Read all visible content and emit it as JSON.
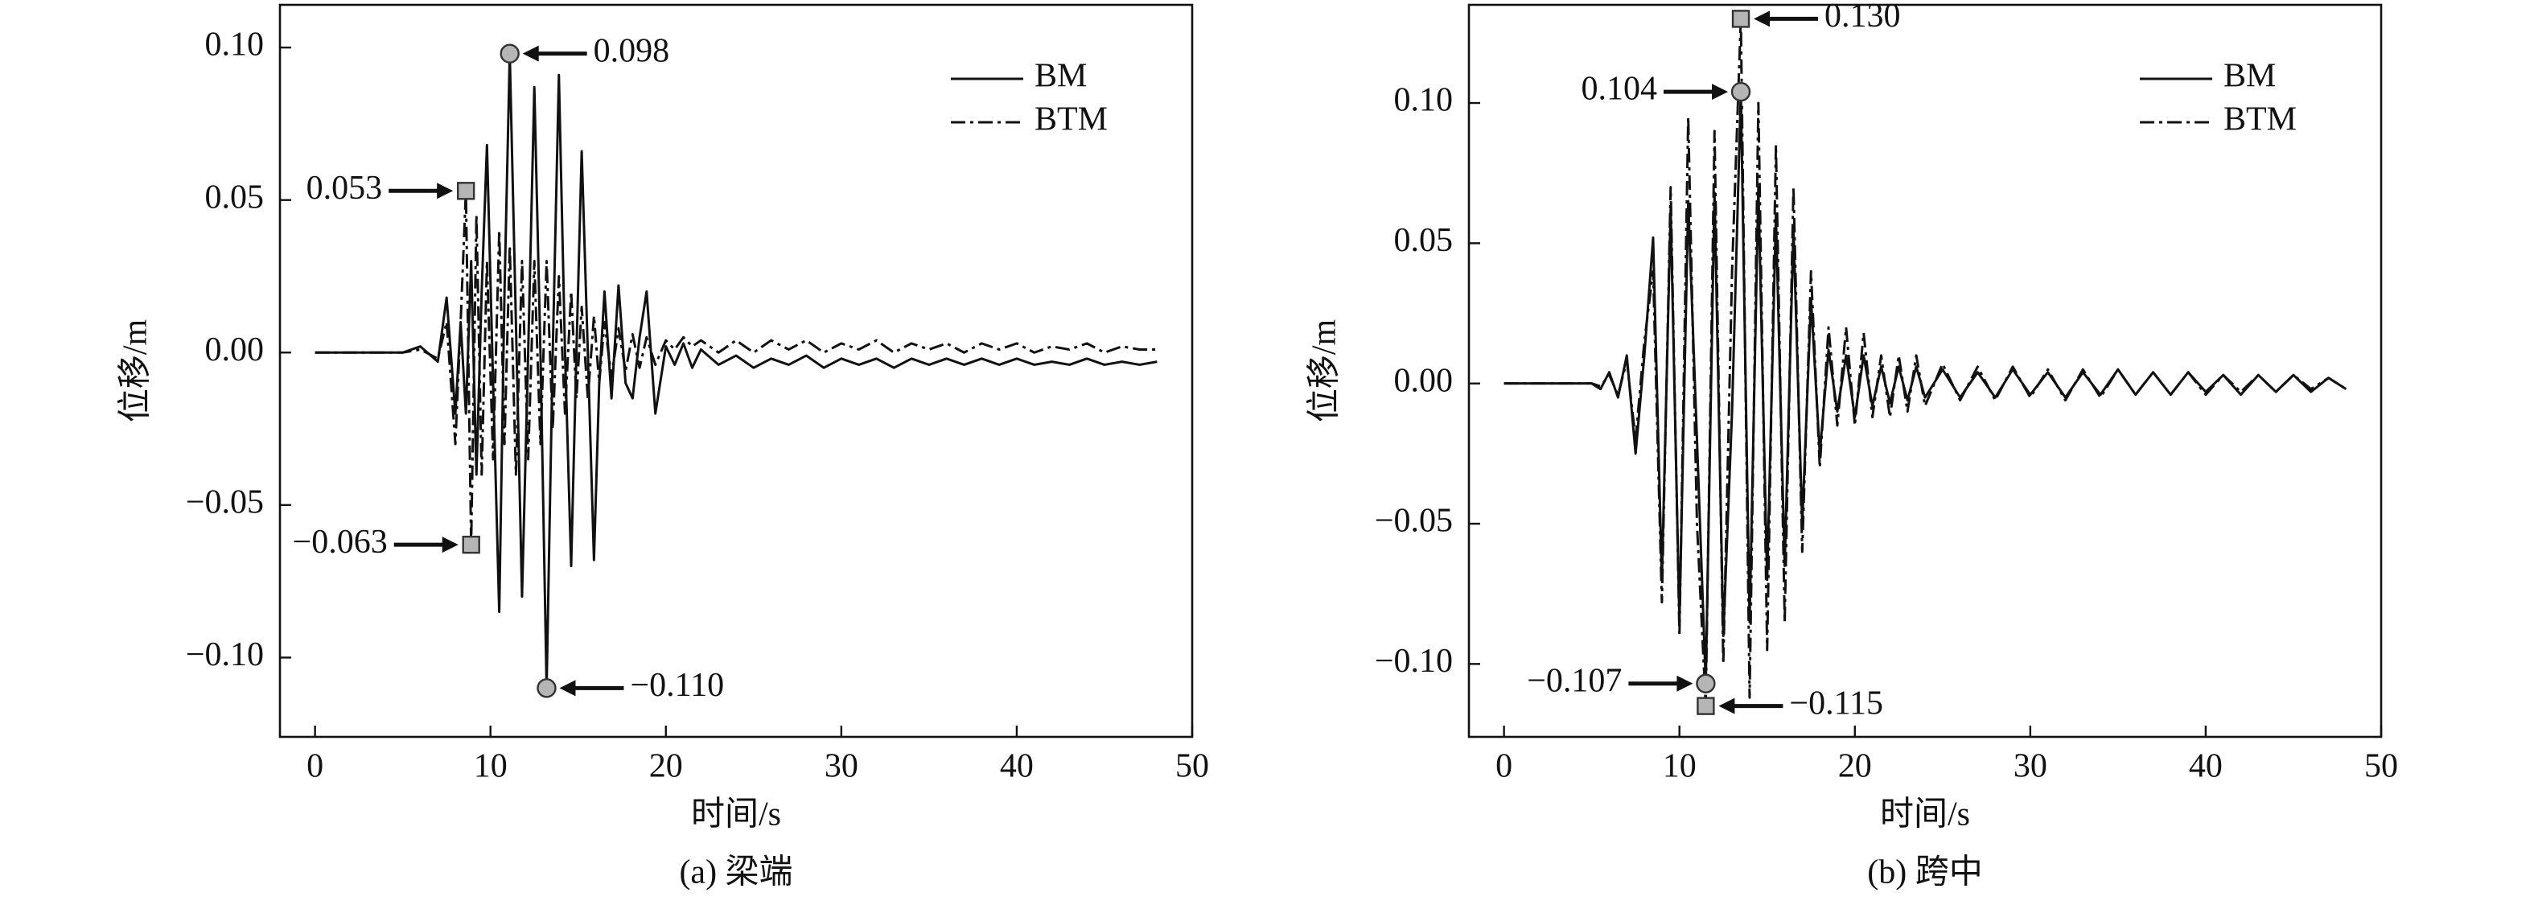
{
  "chart_data": [
    {
      "type": "line",
      "ylabel": "位移/m",
      "xlabel": "时间/s",
      "caption": "(a) 梁端",
      "xlim": [
        -2,
        50
      ],
      "ylim": [
        -0.126,
        0.114
      ],
      "xticks": [
        0,
        10,
        20,
        30,
        40,
        50
      ],
      "yticks": [
        {
          "value": 0.1,
          "label": "0.10"
        },
        {
          "value": 0.05,
          "label": "0.05"
        },
        {
          "value": 0,
          "label": "0.00"
        },
        {
          "value": -0.05,
          "label": "−0.05"
        },
        {
          "value": -0.1,
          "label": "−0.10"
        }
      ],
      "legend": "upper right",
      "x": [
        0,
        5,
        6,
        7,
        7.5,
        8,
        8.3,
        8.6,
        8.9,
        9.2,
        9.5,
        9.8,
        10.15,
        10.5,
        10.8,
        11.1,
        11.45,
        11.8,
        12.15,
        12.5,
        12.85,
        13.2,
        13.55,
        13.9,
        14.25,
        14.6,
        14.9,
        15.2,
        15.55,
        15.9,
        16.2,
        16.5,
        16.9,
        17.3,
        17.7,
        18.1,
        18.5,
        18.9,
        19.4,
        20,
        20.5,
        21,
        21.5,
        22,
        23,
        24,
        25,
        26,
        27,
        28,
        29,
        30,
        31,
        32,
        33,
        34,
        35,
        36,
        37,
        38,
        39,
        40,
        41,
        42,
        43,
        44,
        45,
        46,
        47,
        48
      ],
      "series": [
        {
          "name": "BM",
          "color": "#111111",
          "linestyle": "solid",
          "values": [
            0,
            0,
            0.002,
            -0.003,
            0.018,
            -0.02,
            0.01,
            -0.02,
            0.03,
            -0.04,
            0.02,
            0.068,
            -0.01,
            -0.085,
            0.02,
            0.098,
            0.01,
            -0.08,
            0,
            0.087,
            0,
            -0.11,
            0,
            0.091,
            0,
            -0.07,
            0,
            0.066,
            0,
            -0.068,
            -0.01,
            0.02,
            -0.015,
            0.022,
            -0.01,
            -0.015,
            0.005,
            0.02,
            -0.02,
            0.002,
            -0.004,
            0.003,
            -0.005,
            0.001,
            -0.004,
            -0.001,
            -0.005,
            -0.002,
            -0.004,
            -0.001,
            -0.005,
            -0.002,
            -0.004,
            -0.002,
            -0.005,
            -0.002,
            -0.004,
            -0.002,
            -0.004,
            -0.002,
            -0.004,
            -0.002,
            -0.004,
            -0.003,
            -0.004,
            -0.002,
            -0.004,
            -0.003,
            -0.004,
            -0.003
          ]
        },
        {
          "name": "BTM",
          "color": "#111111",
          "linestyle": "dashdot",
          "values": [
            0,
            0,
            0.001,
            -0.002,
            0.01,
            -0.03,
            0.01,
            0.053,
            -0.063,
            0.045,
            -0.04,
            0.03,
            -0.035,
            0.04,
            -0.03,
            0.035,
            -0.04,
            0.03,
            -0.035,
            0.03,
            -0.03,
            0.03,
            -0.025,
            0.025,
            -0.02,
            0.02,
            -0.015,
            0.015,
            -0.015,
            0.012,
            -0.01,
            0.01,
            -0.008,
            0.008,
            -0.006,
            0.006,
            -0.005,
            0.005,
            -0.004,
            0.004,
            0.001,
            0.005,
            0.002,
            0.004,
            0,
            0.004,
            0,
            0.004,
            0.001,
            0.004,
            0,
            0.003,
            0.001,
            0.004,
            0,
            0.003,
            0.001,
            0.003,
            0,
            0.003,
            0.001,
            0.003,
            0,
            0.002,
            0.001,
            0.003,
            0,
            0.002,
            0.001,
            0.001
          ]
        }
      ],
      "annotations": [
        {
          "text": "0.098",
          "x": 11.1,
          "y": 0.098,
          "marker": "circle"
        },
        {
          "text": "0.053",
          "x": 8.6,
          "y": 0.053,
          "marker": "square"
        },
        {
          "text": "−0.063",
          "x": 8.9,
          "y": -0.063,
          "marker": "square"
        },
        {
          "text": "−0.110",
          "x": 13.2,
          "y": -0.11,
          "marker": "circle"
        }
      ]
    },
    {
      "type": "line",
      "ylabel": "位移/m",
      "xlabel": "时间/s",
      "caption": "(b) 跨中",
      "xlim": [
        -2,
        50
      ],
      "ylim": [
        -0.126,
        0.135
      ],
      "xticks": [
        0,
        10,
        20,
        30,
        40,
        50
      ],
      "yticks": [
        {
          "value": 0.1,
          "label": "0.10"
        },
        {
          "value": 0.05,
          "label": "0.05"
        },
        {
          "value": 0,
          "label": "0.00"
        },
        {
          "value": -0.05,
          "label": "−0.05"
        },
        {
          "value": -0.1,
          "label": "−0.10"
        }
      ],
      "legend": "upper right",
      "x": [
        0,
        5,
        5.5,
        6,
        6.5,
        7,
        7.5,
        8,
        8.5,
        9,
        9.5,
        10,
        10.5,
        11,
        11.5,
        12,
        12.5,
        13,
        13.5,
        14,
        14.5,
        15,
        15.5,
        16,
        16.5,
        17,
        17.5,
        18,
        18.5,
        19,
        19.5,
        20,
        20.5,
        21,
        21.5,
        22,
        22.5,
        23,
        23.5,
        24,
        25,
        26,
        27,
        28,
        29,
        30,
        31,
        32,
        33,
        34,
        35,
        36,
        37,
        38,
        39,
        40,
        41,
        42,
        43,
        44,
        45,
        46,
        47,
        48
      ],
      "series": [
        {
          "name": "BM",
          "color": "#111111",
          "linestyle": "solid",
          "values": [
            0,
            0,
            -0.002,
            0.004,
            -0.005,
            0.01,
            -0.025,
            0.01,
            0.052,
            -0.07,
            0.062,
            -0.085,
            0.065,
            -0.02,
            -0.107,
            0.068,
            -0.09,
            -0.01,
            0.104,
            -0.085,
            0.07,
            -0.07,
            0.06,
            -0.065,
            0.055,
            -0.05,
            0.03,
            -0.025,
            0.012,
            -0.01,
            0.01,
            -0.012,
            0.01,
            -0.008,
            0.006,
            -0.007,
            0.006,
            -0.006,
            0.006,
            -0.005,
            0.005,
            -0.005,
            0.004,
            -0.005,
            0.005,
            -0.004,
            0.004,
            -0.005,
            0.004,
            -0.004,
            0.005,
            -0.004,
            0.004,
            -0.004,
            0.004,
            -0.003,
            0.003,
            -0.004,
            0.003,
            -0.003,
            0.003,
            -0.003,
            0.002,
            -0.002
          ]
        },
        {
          "name": "BTM",
          "color": "#111111",
          "linestyle": "dashdot",
          "values": [
            0,
            0,
            -0.001,
            0.003,
            -0.004,
            0.008,
            -0.02,
            0.015,
            0.04,
            -0.078,
            0.07,
            -0.09,
            0.095,
            -0.05,
            -0.115,
            0.09,
            -0.1,
            0.04,
            0.13,
            -0.112,
            0.1,
            -0.095,
            0.085,
            -0.085,
            0.07,
            -0.06,
            0.04,
            -0.03,
            0.02,
            -0.015,
            0.02,
            -0.015,
            0.018,
            -0.012,
            0.01,
            -0.012,
            0.01,
            -0.01,
            0.01,
            -0.008,
            0.007,
            -0.006,
            0.006,
            -0.006,
            0.006,
            -0.005,
            0.005,
            -0.006,
            0.005,
            -0.005,
            0.005,
            -0.004,
            0.004,
            -0.004,
            0.004,
            -0.004,
            0.003,
            -0.003,
            0.003,
            -0.003,
            0.003,
            -0.002,
            0.002,
            -0.002
          ]
        }
      ],
      "annotations": [
        {
          "text": "0.130",
          "x": 13.5,
          "y": 0.13,
          "marker": "square"
        },
        {
          "text": "0.104",
          "x": 13.5,
          "y": 0.104,
          "marker": "circle"
        },
        {
          "text": "−0.107",
          "x": 11.5,
          "y": -0.107,
          "marker": "circle"
        },
        {
          "text": "−0.115",
          "x": 11.5,
          "y": -0.115,
          "marker": "square"
        }
      ]
    }
  ]
}
